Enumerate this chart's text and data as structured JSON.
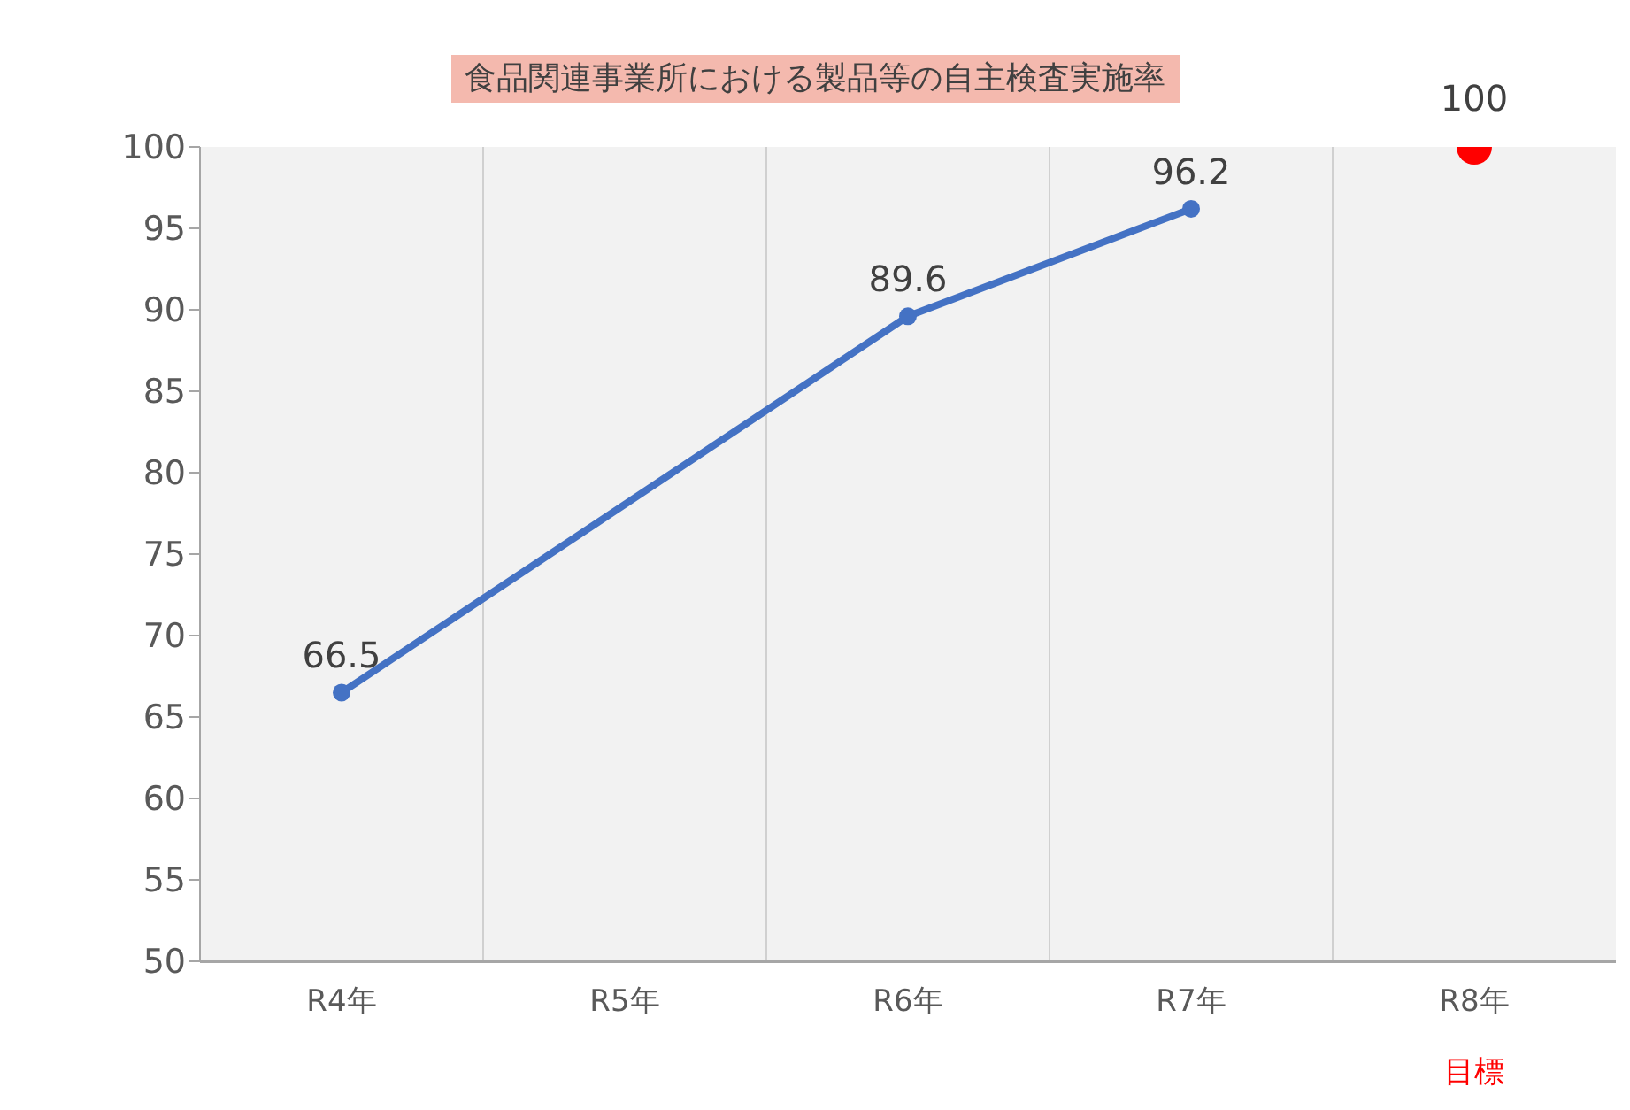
{
  "chart_data": {
    "type": "line",
    "title": "食品関連事業所における製品等の自主検査実施率",
    "categories": [
      "R4年",
      "R5年",
      "R6年",
      "R7年",
      "R8年"
    ],
    "series": [
      {
        "color": "#4472c4",
        "values": [
          66.5,
          null,
          89.6,
          96.2,
          null
        ]
      },
      {
        "type": "scatter",
        "color": "#ff0000",
        "values": [
          null,
          null,
          null,
          null,
          100
        ]
      }
    ],
    "ylim": [
      50,
      100
    ],
    "yticks": [
      50,
      55,
      60,
      65,
      70,
      75,
      80,
      85,
      90,
      95,
      100
    ],
    "grid": "x",
    "legend": false,
    "marker": "circle",
    "data_labels": true,
    "annotations": [
      "目標"
    ]
  }
}
